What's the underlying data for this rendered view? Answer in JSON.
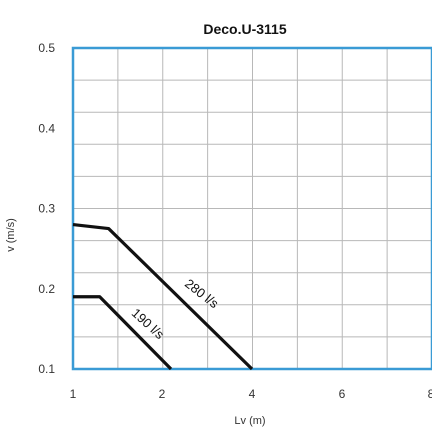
{
  "chart_data": {
    "type": "line",
    "title": "Deco.U-3115",
    "xlabel": "Lv (m)",
    "ylabel": "v (m/s)",
    "x_ticks": [
      "1",
      "2",
      "4",
      "6",
      "8"
    ],
    "y_ticks": [
      "0.1",
      "0.2",
      "0.3",
      "0.4",
      "0.5"
    ],
    "xlim": [
      1,
      8
    ],
    "ylim": [
      0.1,
      0.5
    ],
    "grid": true,
    "series": [
      {
        "name": "280 l/s",
        "x": [
          1,
          1.4,
          4
        ],
        "y": [
          0.28,
          0.275,
          0.1
        ]
      },
      {
        "name": "190 l/s",
        "x": [
          1,
          1.3,
          2.2
        ],
        "y": [
          0.19,
          0.19,
          0.1
        ]
      }
    ],
    "colors": {
      "frame": "#3a9bd5",
      "grid": "#b8b8b8",
      "line": "#111111"
    }
  }
}
